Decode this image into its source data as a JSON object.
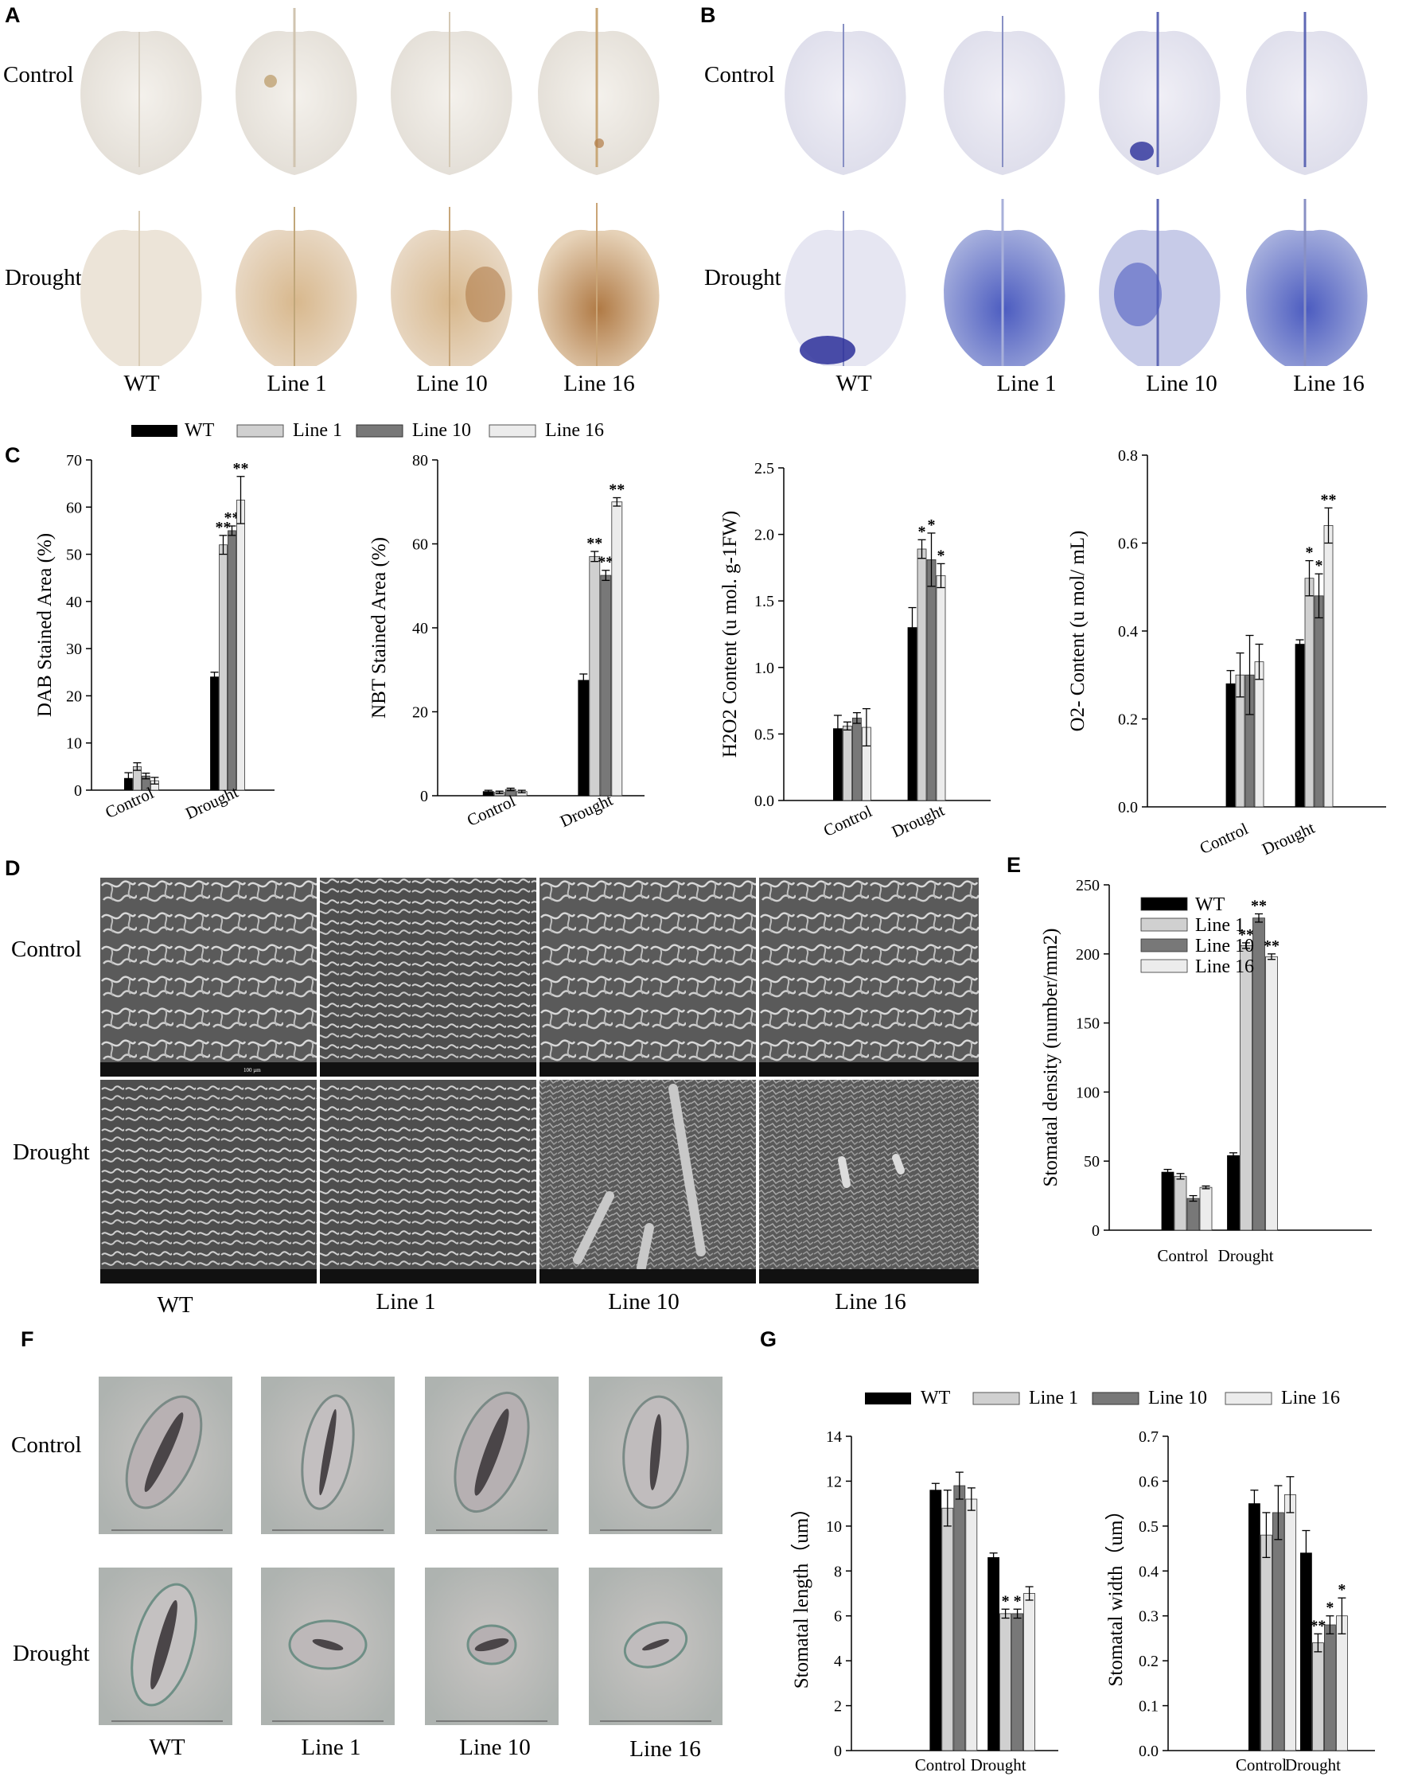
{
  "panels": {
    "A": "A",
    "B": "B",
    "C": "C",
    "D": "D",
    "E": "E",
    "F": "F",
    "G": "G"
  },
  "rows": {
    "control": "Control",
    "drought": "Drought"
  },
  "lines": [
    "WT",
    "Line 1",
    "Line 10",
    "Line 16"
  ],
  "colors": {
    "WT": "#000000",
    "Line 1": "#d0d0d0",
    "Line 10": "#787878",
    "Line 16": "#ececec"
  },
  "sem_scale_label": "100 µm",
  "chart_data": [
    {
      "id": "C1",
      "type": "bar",
      "categories": [
        "Control",
        "Drought"
      ],
      "ylabel": "DAB Stained Area (%)",
      "ylim": [
        0,
        70
      ],
      "series": [
        {
          "name": "WT",
          "values": [
            2.5,
            24
          ],
          "err": [
            1.2,
            1
          ],
          "sig": [
            "",
            ""
          ]
        },
        {
          "name": "Line 1",
          "values": [
            5,
            52
          ],
          "err": [
            0.8,
            2
          ],
          "sig": [
            "",
            "**"
          ]
        },
        {
          "name": "Line 10",
          "values": [
            3,
            55
          ],
          "err": [
            0.6,
            1
          ],
          "sig": [
            "",
            "**"
          ]
        },
        {
          "name": "Line 16",
          "values": [
            2,
            61.5
          ],
          "err": [
            0.7,
            5
          ],
          "sig": [
            "",
            "**"
          ]
        }
      ]
    },
    {
      "id": "C2",
      "type": "bar",
      "categories": [
        "Control",
        "Drought"
      ],
      "ylabel": "NBT Stained Area (%)",
      "ylim": [
        0,
        80
      ],
      "series": [
        {
          "name": "WT",
          "values": [
            1,
            27.5
          ],
          "err": [
            0.3,
            1.5
          ],
          "sig": [
            "",
            ""
          ]
        },
        {
          "name": "Line 1",
          "values": [
            0.8,
            57
          ],
          "err": [
            0.3,
            1.2
          ],
          "sig": [
            "",
            "**"
          ]
        },
        {
          "name": "Line 10",
          "values": [
            1.5,
            52.5
          ],
          "err": [
            0.3,
            1.2
          ],
          "sig": [
            "",
            "**"
          ]
        },
        {
          "name": "Line 16",
          "values": [
            1,
            70
          ],
          "err": [
            0.3,
            1
          ],
          "sig": [
            "",
            "**"
          ]
        }
      ]
    },
    {
      "id": "C3",
      "type": "bar",
      "categories": [
        "Control",
        "Drought"
      ],
      "ylabel": "H2O2 Content (u mol. g-1FW)",
      "ylim": [
        0,
        2.5
      ],
      "series": [
        {
          "name": "WT",
          "values": [
            0.54,
            1.3
          ],
          "err": [
            0.1,
            0.15
          ],
          "sig": [
            "",
            ""
          ]
        },
        {
          "name": "Line 1",
          "values": [
            0.56,
            1.89
          ],
          "err": [
            0.03,
            0.07
          ],
          "sig": [
            "",
            "*"
          ]
        },
        {
          "name": "Line 10",
          "values": [
            0.62,
            1.81
          ],
          "err": [
            0.04,
            0.2
          ],
          "sig": [
            "",
            "*"
          ]
        },
        {
          "name": "Line 16",
          "values": [
            0.55,
            1.69
          ],
          "err": [
            0.14,
            0.09
          ],
          "sig": [
            "",
            "*"
          ]
        }
      ]
    },
    {
      "id": "C4",
      "type": "bar",
      "categories": [
        "Control",
        "Drought"
      ],
      "ylabel": "O2- Content (u mol/ mL)",
      "ylim": [
        0,
        0.8
      ],
      "series": [
        {
          "name": "WT",
          "values": [
            0.28,
            0.37
          ],
          "err": [
            0.03,
            0.01
          ],
          "sig": [
            "",
            ""
          ]
        },
        {
          "name": "Line 1",
          "values": [
            0.3,
            0.52
          ],
          "err": [
            0.05,
            0.04
          ],
          "sig": [
            "",
            "*"
          ]
        },
        {
          "name": "Line 10",
          "values": [
            0.3,
            0.48
          ],
          "err": [
            0.09,
            0.05
          ],
          "sig": [
            "",
            "*"
          ]
        },
        {
          "name": "Line 16",
          "values": [
            0.33,
            0.64
          ],
          "err": [
            0.04,
            0.04
          ],
          "sig": [
            "",
            "**"
          ]
        }
      ]
    },
    {
      "id": "E",
      "type": "bar",
      "categories": [
        "Control",
        "Drought"
      ],
      "ylabel": "Stomatal density (number/mm2)",
      "ylim": [
        0,
        250
      ],
      "legend": "top-left",
      "series": [
        {
          "name": "WT",
          "values": [
            42,
            54
          ],
          "err": [
            2,
            2
          ],
          "sig": [
            "",
            ""
          ]
        },
        {
          "name": "Line 1",
          "values": [
            39,
            206
          ],
          "err": [
            2,
            2
          ],
          "sig": [
            "",
            "**"
          ]
        },
        {
          "name": "Line 10",
          "values": [
            23,
            226
          ],
          "err": [
            2,
            3
          ],
          "sig": [
            "",
            "**"
          ]
        },
        {
          "name": "Line 16",
          "values": [
            31,
            198
          ],
          "err": [
            1,
            2
          ],
          "sig": [
            "",
            "**"
          ]
        }
      ]
    },
    {
      "id": "G1",
      "type": "bar",
      "categories": [
        "Control",
        "Drought"
      ],
      "ylabel": "Stomatal length（um）",
      "ylim": [
        0,
        14
      ],
      "series": [
        {
          "name": "WT",
          "values": [
            11.6,
            8.6
          ],
          "err": [
            0.3,
            0.2
          ],
          "sig": [
            "",
            ""
          ]
        },
        {
          "name": "Line 1",
          "values": [
            10.8,
            6.1
          ],
          "err": [
            0.8,
            0.2
          ],
          "sig": [
            "",
            "*"
          ]
        },
        {
          "name": "Line 10",
          "values": [
            11.8,
            6.1
          ],
          "err": [
            0.6,
            0.2
          ],
          "sig": [
            "",
            "*"
          ]
        },
        {
          "name": "Line 16",
          "values": [
            11.2,
            7.0
          ],
          "err": [
            0.5,
            0.3
          ],
          "sig": [
            "",
            ""
          ]
        }
      ]
    },
    {
      "id": "G2",
      "type": "bar",
      "categories": [
        "Control",
        "Drought"
      ],
      "ylabel": "Stomatal width（um）",
      "ylim": [
        0,
        0.7
      ],
      "series": [
        {
          "name": "WT",
          "values": [
            0.55,
            0.44
          ],
          "err": [
            0.03,
            0.05
          ],
          "sig": [
            "",
            ""
          ]
        },
        {
          "name": "Line 1",
          "values": [
            0.48,
            0.24
          ],
          "err": [
            0.05,
            0.02
          ],
          "sig": [
            "",
            "**"
          ]
        },
        {
          "name": "Line 10",
          "values": [
            0.53,
            0.28
          ],
          "err": [
            0.06,
            0.02
          ],
          "sig": [
            "",
            "*"
          ]
        },
        {
          "name": "Line 16",
          "values": [
            0.57,
            0.3
          ],
          "err": [
            0.04,
            0.04
          ],
          "sig": [
            "",
            "*"
          ]
        }
      ]
    }
  ]
}
